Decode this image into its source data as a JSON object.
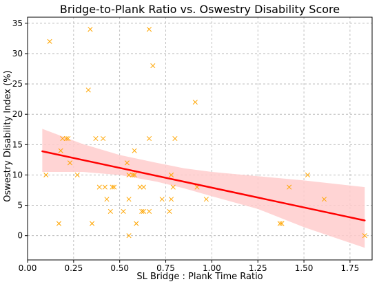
{
  "chart_data": {
    "type": "scatter",
    "title": "Bridge-to-Plank Ratio vs. Oswestry Disability Score",
    "xlabel": "SL Bridge : Plank Time Ratio",
    "ylabel": "Oswestry Disability Index (%)",
    "xlim": [
      0.0,
      1.87
    ],
    "ylim": [
      -4,
      36
    ],
    "x_ticks": [
      0.0,
      0.25,
      0.5,
      0.75,
      1.0,
      1.25,
      1.5,
      1.75
    ],
    "x_tick_labels": [
      "0.00",
      "0.25",
      "0.50",
      "0.75",
      "1.00",
      "1.25",
      "1.50",
      "1.75"
    ],
    "y_ticks": [
      0,
      5,
      10,
      15,
      20,
      25,
      30,
      35
    ],
    "y_tick_labels": [
      "0",
      "5",
      "10",
      "15",
      "20",
      "25",
      "30",
      "35"
    ],
    "grid": true,
    "colors": {
      "points": "#ffa500",
      "regression": "#ff0000",
      "confidence_band": "#ffcccc"
    },
    "series": [
      {
        "marker": "x",
        "x": [
          0.12,
          0.34,
          0.66,
          0.68,
          0.33,
          0.91,
          0.19,
          0.21,
          0.22,
          0.37,
          0.41,
          0.66,
          0.8,
          0.18,
          0.58,
          0.54,
          0.23,
          0.1,
          0.27,
          0.57,
          0.58,
          0.55,
          0.78,
          0.39,
          0.42,
          0.46,
          0.47,
          0.61,
          0.63,
          0.79,
          0.92,
          0.43,
          0.55,
          0.73,
          0.78,
          0.97,
          0.45,
          0.52,
          0.62,
          0.63,
          0.66,
          0.77,
          1.42,
          1.52,
          1.61,
          0.17,
          0.35,
          0.59,
          1.37,
          1.38,
          0.55,
          1.83
        ],
        "y": [
          32,
          34,
          34,
          28,
          24,
          22,
          16,
          16,
          16,
          16,
          16,
          16,
          16,
          14,
          14,
          12,
          12,
          10,
          10,
          10,
          10,
          10,
          10,
          8,
          8,
          8,
          8,
          8,
          8,
          8,
          8,
          6,
          6,
          6,
          6,
          6,
          4,
          4,
          4,
          4,
          4,
          4,
          8,
          10,
          6,
          2,
          2,
          2,
          2,
          2,
          0,
          0
        ]
      }
    ],
    "regression": {
      "x": [
        0.08,
        1.83
      ],
      "y": [
        13.9,
        2.5
      ]
    },
    "confidence_band": {
      "x": [
        0.08,
        0.3,
        0.5,
        0.7,
        0.85,
        1.0,
        1.25,
        1.5,
        1.83
      ],
      "upper": [
        17.6,
        15.1,
        13.3,
        12.0,
        11.1,
        10.5,
        9.8,
        9.1,
        8.0
      ],
      "lower": [
        10.5,
        10.5,
        10.0,
        8.9,
        7.8,
        6.5,
        4.4,
        1.4,
        -2.0
      ]
    }
  }
}
